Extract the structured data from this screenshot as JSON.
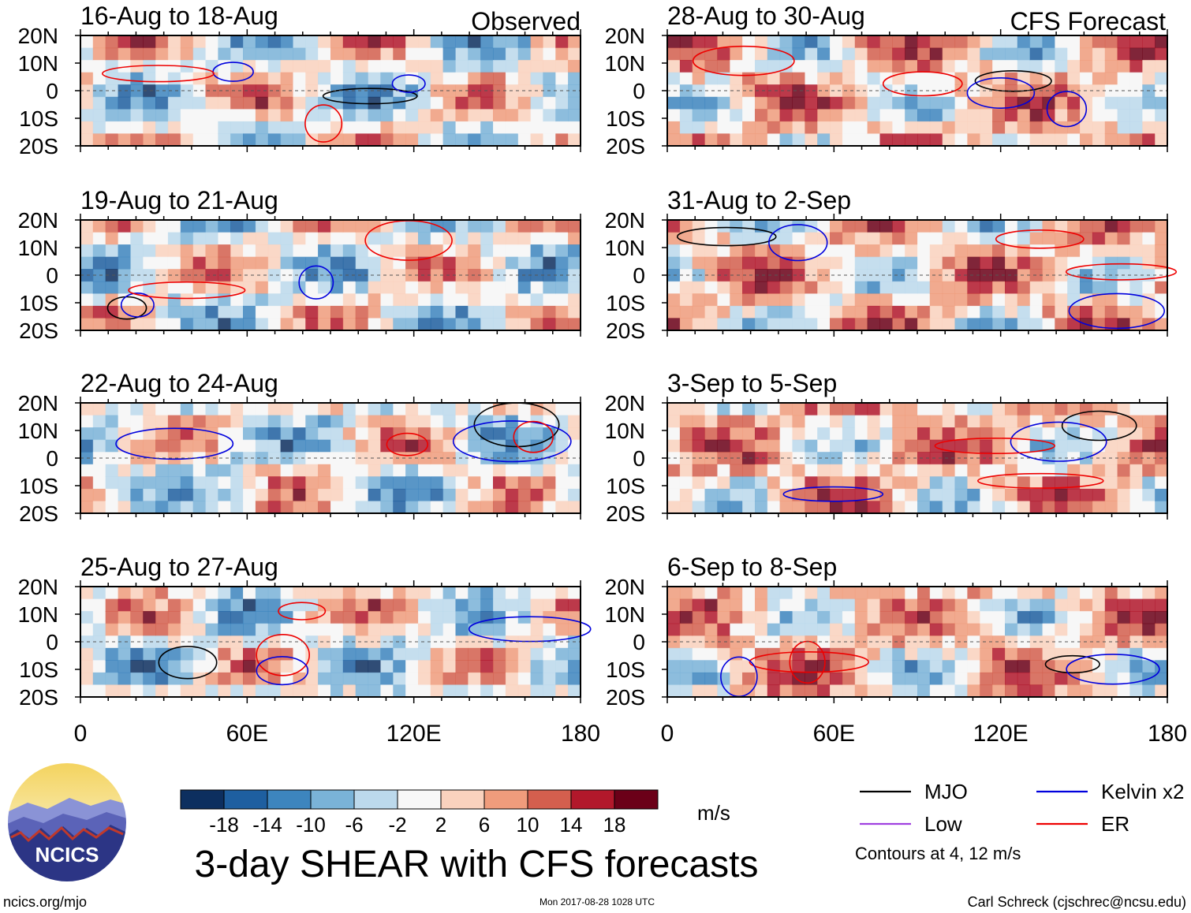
{
  "chart_data": {
    "type": "heatmap",
    "title": "3-day SHEAR with CFS forecasts",
    "units": "m/s",
    "x_ticks": [
      "0",
      "60E",
      "120E",
      "180"
    ],
    "y_ticks": [
      "20N",
      "10N",
      "0",
      "10S",
      "20S"
    ],
    "xlim_deg": [
      0,
      180
    ],
    "ylim_deg": [
      -20,
      20
    ],
    "column_labels": {
      "left": "Observed",
      "right": "CFS Forecast"
    },
    "panels": [
      {
        "column": "left",
        "period": "16-Aug to 18-Aug"
      },
      {
        "column": "left",
        "period": "19-Aug to 21-Aug"
      },
      {
        "column": "left",
        "period": "22-Aug to 24-Aug"
      },
      {
        "column": "left",
        "period": "25-Aug to 27-Aug"
      },
      {
        "column": "right",
        "period": "28-Aug to 30-Aug"
      },
      {
        "column": "right",
        "period": "31-Aug to 2-Sep"
      },
      {
        "column": "right",
        "period": "3-Sep to 5-Sep"
      },
      {
        "column": "right",
        "period": "6-Sep to 8-Sep"
      }
    ],
    "colorbar": {
      "labels": [
        "-18",
        "-14",
        "-10",
        "-6",
        "-2",
        "2",
        "6",
        "10",
        "14",
        "18"
      ],
      "colors": [
        "#0d2f5f",
        "#1e5fa0",
        "#3d85be",
        "#7ab3d8",
        "#bcd9ec",
        "#f7f7f7",
        "#fad2be",
        "#f09c7c",
        "#d45f4e",
        "#b2182b",
        "#6b0018"
      ]
    },
    "legend": [
      {
        "label": "MJO",
        "color": "#000000"
      },
      {
        "label": "Kelvin x2",
        "color": "#0000dd"
      },
      {
        "label": "Low",
        "color": "#a040e0"
      },
      {
        "label": "ER",
        "color": "#ee0000"
      }
    ],
    "contour_note": "Contours at 4, 12 m/s"
  },
  "branding": {
    "logo_text": "NCICS",
    "url": "ncics.org/mjo"
  },
  "timestamp": "Mon 2017-08-28 1028 UTC",
  "credit": "Carl Schreck (cjschrec@ncsu.edu)"
}
